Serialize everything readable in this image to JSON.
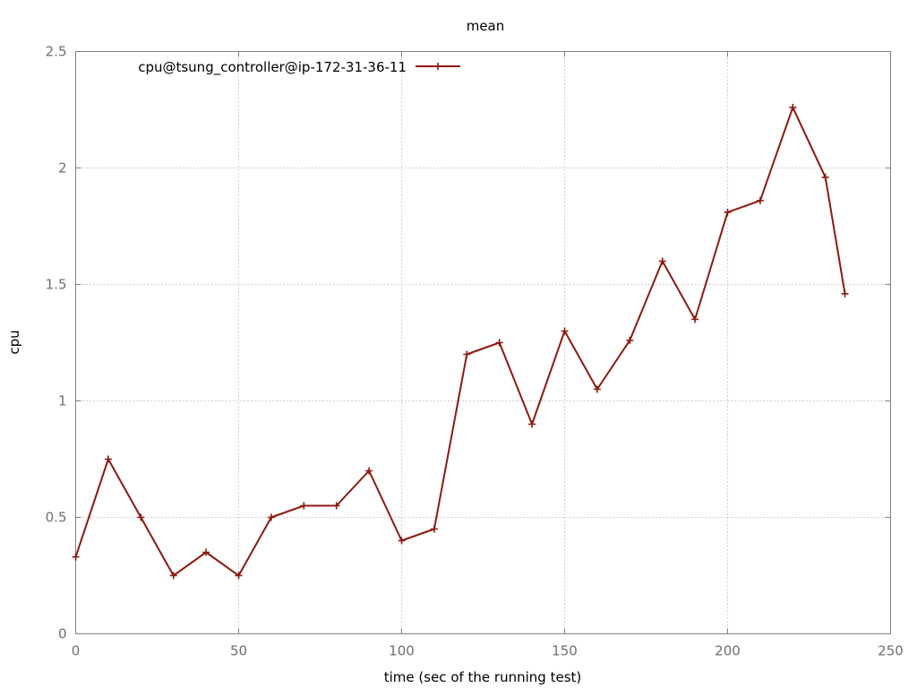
{
  "chart_data": {
    "type": "line",
    "title": "mean",
    "xlabel": "time (sec of the running test)",
    "ylabel": "cpu",
    "xlim": [
      0,
      250
    ],
    "ylim": [
      0,
      2.5
    ],
    "xticks": [
      0,
      50,
      100,
      150,
      200,
      250
    ],
    "xtick_labels": [
      "0",
      "50",
      "100",
      "150",
      "200",
      "250"
    ],
    "yticks": [
      0,
      0.5,
      1,
      1.5,
      2,
      2.5
    ],
    "ytick_labels": [
      "0",
      "0.5",
      "1",
      "1.5",
      "2",
      "2.5"
    ],
    "grid": true,
    "legend_position": "top-left",
    "series": [
      {
        "name": "cpu@tsung_controller@ip-172-31-36-11",
        "color": "#8b1a0e",
        "marker": "plus",
        "x": [
          0,
          10,
          20,
          30,
          40,
          50,
          60,
          70,
          80,
          90,
          100,
          110,
          120,
          130,
          140,
          150,
          160,
          170,
          180,
          190,
          200,
          210,
          220,
          230,
          236
        ],
        "y": [
          0.33,
          0.75,
          0.5,
          0.25,
          0.35,
          0.25,
          0.5,
          0.55,
          0.55,
          0.7,
          0.4,
          0.45,
          1.2,
          1.25,
          0.9,
          1.3,
          1.05,
          1.26,
          1.6,
          1.35,
          1.81,
          1.86,
          2.26,
          1.96,
          1.46
        ]
      }
    ]
  }
}
